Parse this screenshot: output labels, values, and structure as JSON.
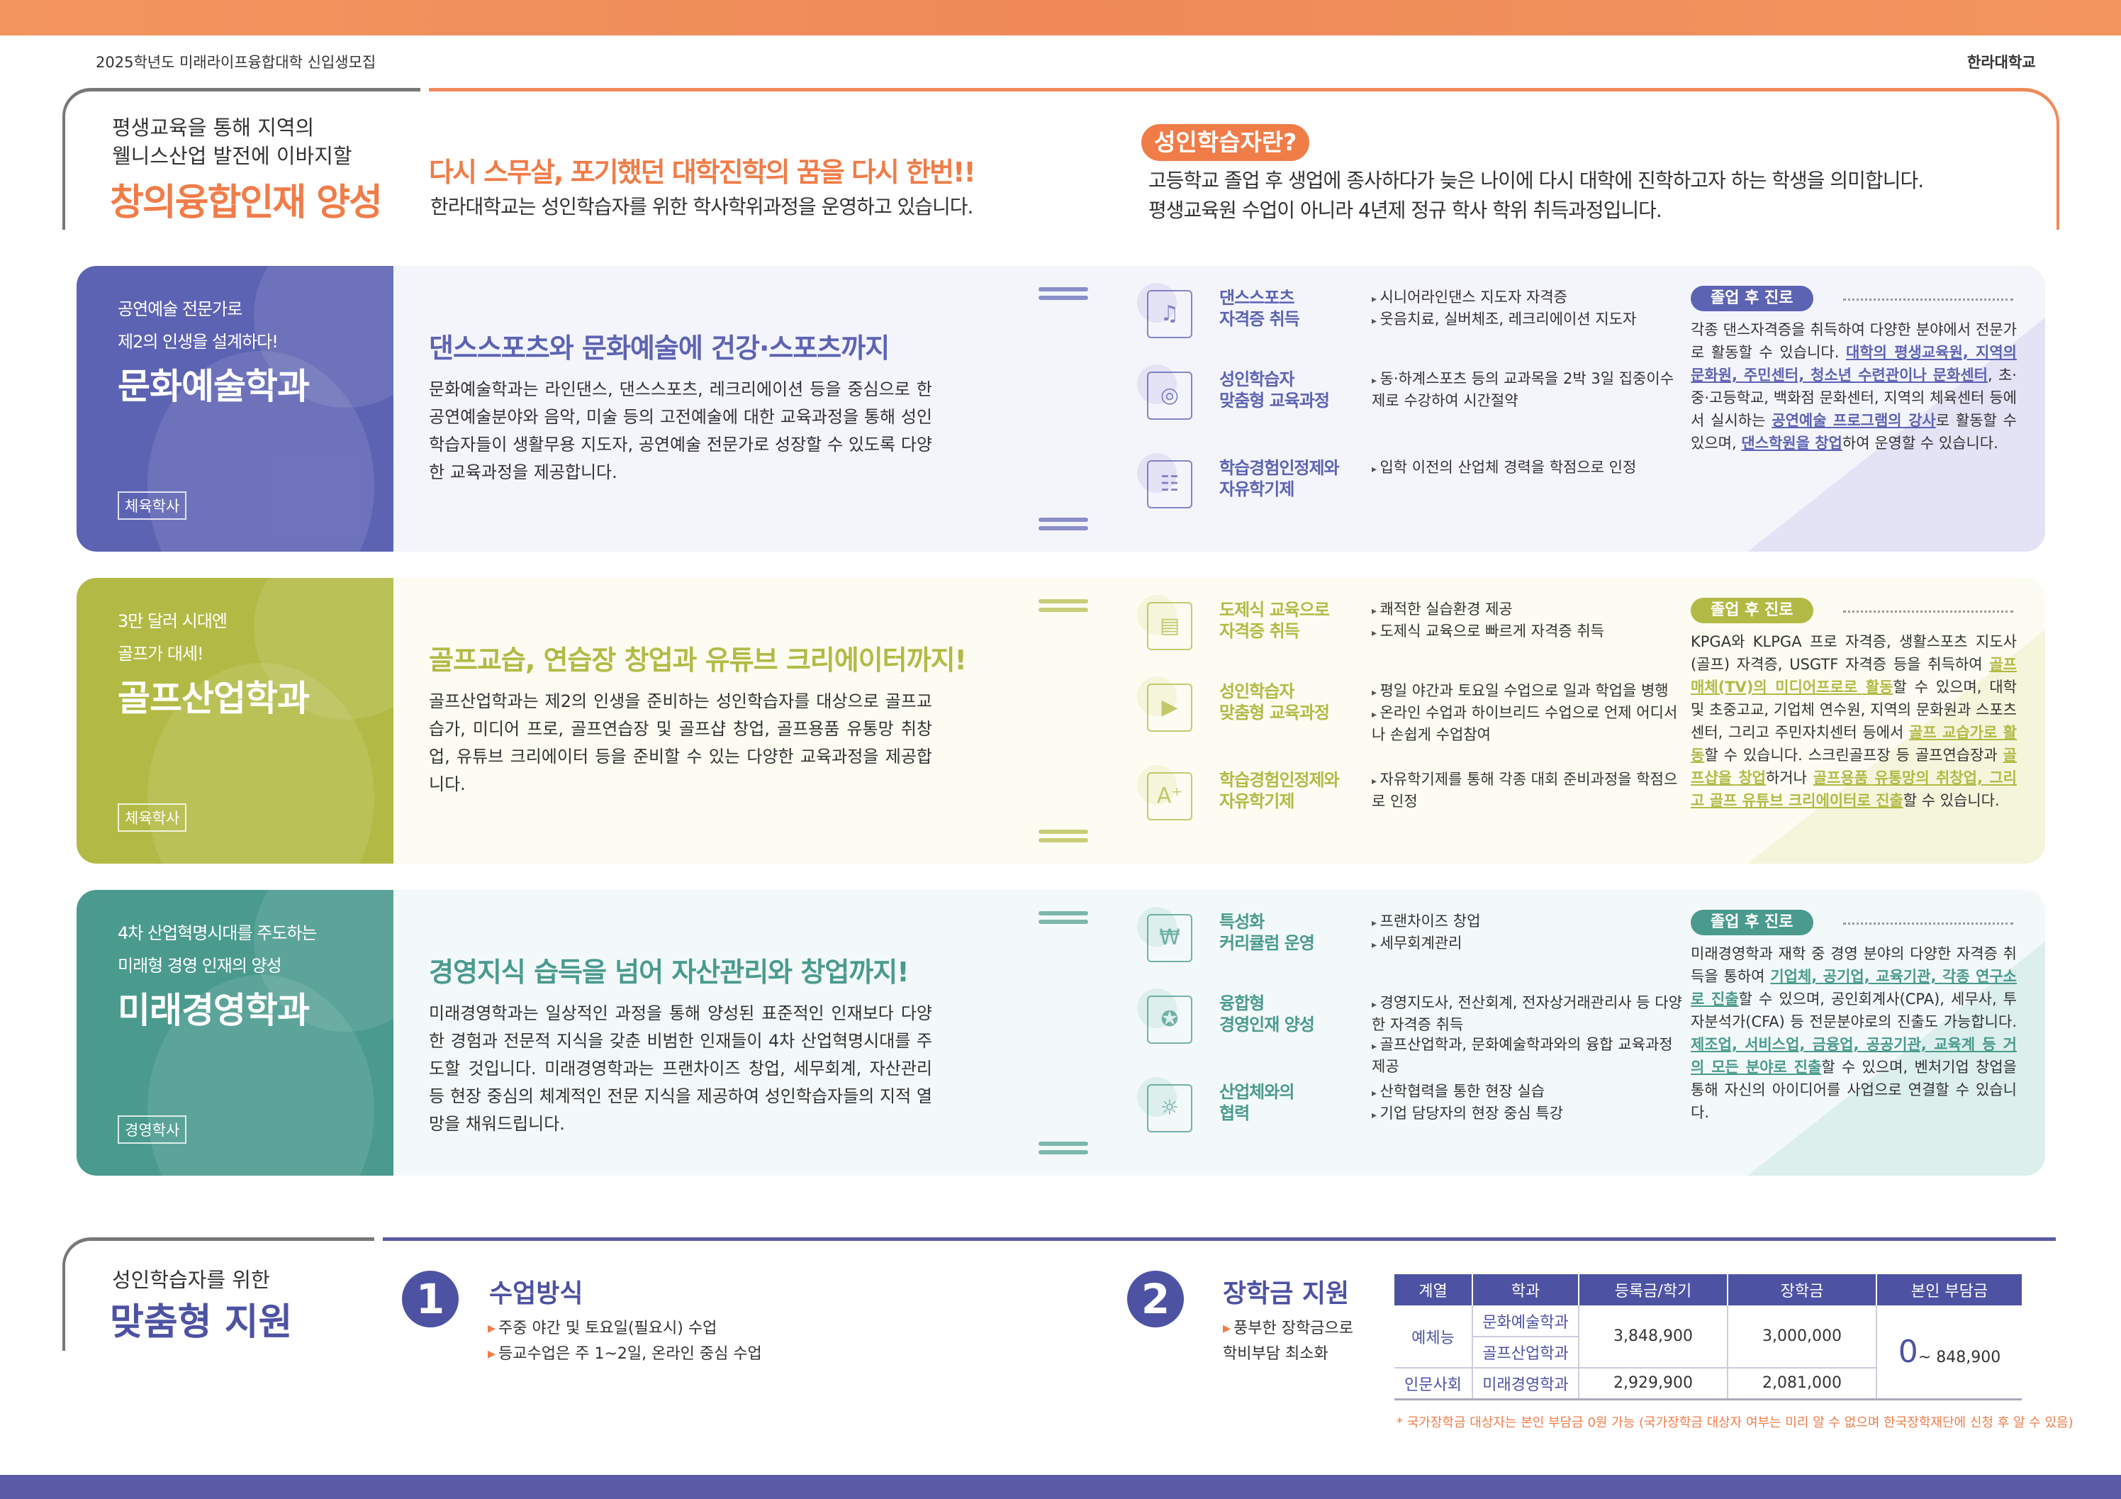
{
  "header": {
    "left": "2025학년도 미래라이프융합대학 신입생모집",
    "right": "한라대학교"
  },
  "intro": {
    "lines": [
      "평생교육을 통해 지역의",
      "웰니스산업 발전에 이바지할"
    ],
    "highlight": "창의융합인재 양성",
    "slogan": "다시 스무살, 포기했던 대학진학의 꿈을 다시 한번!!",
    "slogan_sub": "한라대학교는 성인학습자를 위한 학사학위과정을 운영하고 있습니다.",
    "def_badge": "성인학습자란?",
    "def_lines": [
      "고등학교 졸업 후 생업에 종사하다가 늦은 나이에 다시 대학에 진학하고자 하는 학생을 의미합니다.",
      "평생교육원 수업이 아니라 4년제 정규 학사 학위 취득과정입니다."
    ]
  },
  "colors": {
    "orange": "#f07c48",
    "purple": "#5b61b0",
    "green": "#b2ba45",
    "teal": "#4a9a8e"
  },
  "departments": [
    {
      "color": "#5d63b3",
      "light": "#f4f5fb",
      "tri": "#e4e2f5",
      "sub": [
        "공연예술 전문가로",
        "제2의 인생을 설계하다!"
      ],
      "name": "문화예술학과",
      "degree": "체육학사",
      "headline": "댄스스포츠와 문화예술에 건강·스포츠까지",
      "body": "문화예술학과는 라인댄스, 댄스스포츠, 레크리에이션 등을 중심으로 한 공연예술분야와 음악, 미술 등의 고전예술에 대한 교육과정을 통해 성인학습자들이 생활무용 지도자, 공연예술 전문가로 성장할 수 있도록 다양한 교육과정을 제공합니다.",
      "features": [
        {
          "icon": "music-scroll-icon",
          "title": [
            "댄스스포츠",
            "자격증 취득"
          ],
          "bullets": [
            "시니어라인댄스 지도자 자격증",
            "웃음치료, 실버체조, 레크리에이션 지도자"
          ]
        },
        {
          "icon": "target-icon",
          "title": [
            "성인학습자",
            "맞춤형 교육과정"
          ],
          "bullets": [
            "동·하계스포츠 등의 교과목을 2박 3일 집중이수제로 수강하여 시간절약"
          ]
        },
        {
          "icon": "teacher-board-icon",
          "title": [
            "학습경험인정제와",
            "자유학기제"
          ],
          "bullets": [
            "입학 이전의 산업체 경력을 학점으로 인정"
          ]
        }
      ],
      "career_label": "졸업 후 진로",
      "career": [
        {
          "t": "각종 댄스자격증을 취득하여 다양한 분야에서 전문가로 활동할 수 있습니다. "
        },
        {
          "t": "대학의 평생교육원, 지역의 문화원, 주민센터, 청소년 수련관이나 문화센터",
          "h": true
        },
        {
          "t": ", 초·중·고등학교, 백화점 문화센터, 지역의 체육센터 등에서 실시하는 "
        },
        {
          "t": "공연예술 프로그램의 강사",
          "h": true
        },
        {
          "t": "로 활동할 수 있으며, "
        },
        {
          "t": "댄스학원을 창업",
          "h": true
        },
        {
          "t": "하여 운영할 수 있습니다."
        }
      ]
    },
    {
      "color": "#b2ba45",
      "light": "#fcfcf2",
      "tri": "#f5f5dc",
      "sub": [
        "3만 달러 시대엔",
        "골프가 대세!"
      ],
      "name": "골프산업학과",
      "degree": "체육학사",
      "headline": "골프교습, 연습장 창업과 유튜브 크리에이터까지!",
      "body": "골프산업학과는 제2의 인생을 준비하는 성인학습자를 대상으로 골프교습가, 미디어 프로, 골프연습장 및 골프샵 창업, 골프용품 유통망 취창업, 유튜브 크리에이터 등을 준비할 수 있는 다양한 교육과정을 제공합니다.",
      "features": [
        {
          "icon": "document-cursor-icon",
          "title": [
            "도제식 교육으로",
            "자격증 취득"
          ],
          "bullets": [
            "쾌적한 실습환경 제공",
            "도제식 교육으로 빠르게 자격증 취득"
          ]
        },
        {
          "icon": "online-class-icon",
          "title": [
            "성인학습자",
            "맞춤형 교육과정"
          ],
          "bullets": [
            "평일 야간과 토요일 수업으로 일과 학업을 병행",
            "온라인 수업과 하이브리드 수업으로 언제 어디서나 손쉽게 수업참여"
          ]
        },
        {
          "icon": "trophy-icon",
          "title": [
            "학습경험인정제와",
            "자유학기제"
          ],
          "bullets": [
            "자유학기제를 통해 각종 대회 준비과정을 학점으로 인정"
          ]
        }
      ],
      "career_label": "졸업 후 진로",
      "career": [
        {
          "t": "KPGA와 KLPGA 프로 자격증, 생활스포츠 지도사(골프) 자격증, USGTF 자격증 등을 취득하여 "
        },
        {
          "t": "골프매체(TV)의 미디어프로로 활동",
          "h": true
        },
        {
          "t": "할 수 있으며, 대학 및 초중고교, 기업체 연수원, 지역의 문화원과 스포츠센터, 그리고 주민자치센터 등에서 "
        },
        {
          "t": "골프 교습가로 활동",
          "h": true
        },
        {
          "t": "할 수 있습니다. 스크린골프장 등 골프연습장과 "
        },
        {
          "t": "골프샵을 창업",
          "h": true
        },
        {
          "t": "하거나 "
        },
        {
          "t": "골프용품 유통망의 취창업, 그리고 골프 유튜브 크리에이터로 진출",
          "h": true
        },
        {
          "t": "할 수 있습니다."
        }
      ]
    },
    {
      "color": "#4a9a8e",
      "light": "#f3f9f9",
      "tri": "#dcefec",
      "sub": [
        "4차 산업혁명시대를 주도하는",
        "미래형 경영 인재의 양성"
      ],
      "name": "미래경영학과",
      "degree": "경영학사",
      "headline": "경영지식 습득을 넘어 자산관리와 창업까지!",
      "body": "미래경영학과는 일상적인 과정을 통해 양성된 표준적인 인재보다 다양한 경험과 전문적 지식을 갖춘 비범한 인재들이 4차 산업혁명시대를 주도할 것입니다. 미래경영학과는 프랜차이즈 창업, 세무회계, 자산관리 등 현장 중심의 체계적인 전문 지식을 제공하여 성인학습자들의 지적 열망을 채워드립니다.",
      "features": [
        {
          "icon": "won-book-icon",
          "title": [
            "특성화",
            "커리큘럼 운영"
          ],
          "bullets": [
            "프랜차이즈 창업",
            "세무회계관리"
          ]
        },
        {
          "icon": "pass-badge-icon",
          "title": [
            "융합형",
            "경영인재 양성"
          ],
          "bullets": [
            "경영지도사, 전산회계, 전자상거래관리사 등 다양한 자격증 취득",
            "골프산업학과, 문화예술학과와의 융합 교육과정 제공"
          ]
        },
        {
          "icon": "lightbulb-people-icon",
          "title": [
            "산업체와의",
            "협력"
          ],
          "bullets": [
            "산학협력을 통한 현장 실습",
            "기업 담당자의 현장 중심 특강"
          ]
        }
      ],
      "career_label": "졸업 후 진로",
      "career": [
        {
          "t": "미래경영학과 재학 중 경영 분야의 다양한 자격증 취득을 통하여 "
        },
        {
          "t": "기업체, 공기업, 교육기관, 각종 연구소로 진출",
          "h": true
        },
        {
          "t": "할 수 있으며, 공인회계사(CPA), 세무사, 투자분석가(CFA) 등 전문분야로의 진출도 가능합니다. "
        },
        {
          "t": "제조업, 서비스업, 금융업, 공공기관, 교육계 등 거의 모든 분야로 진출",
          "h": true
        },
        {
          "t": "할 수 있으며, 벤처기업 창업을 통해 자신의 아이디어를 사업으로 연결할 수 있습니다."
        }
      ]
    }
  ],
  "support": {
    "pre": "성인학습자를 위한",
    "title": "맞춤형 지원",
    "s1": {
      "num": "1",
      "title": "수업방식",
      "bullets": [
        "주중 야간 및 토요일(필요시) 수업",
        "등교수업은 주 1~2일, 온라인 중심 수업"
      ]
    },
    "s2": {
      "num": "2",
      "title": "장학금 지원",
      "bullets": [
        "풍부한 장학금으로 학비부담 최소화"
      ]
    },
    "table": {
      "headers": [
        "계열",
        "학과",
        "등록금/학기",
        "장학금",
        "본인 부담금"
      ],
      "cat1": "예체능",
      "dep1": "문화예술학과",
      "dep2": "골프산업학과",
      "fee1": "3,848,900",
      "sch1": "3,000,000",
      "cat2": "인문사회",
      "dep3": "미래경영학과",
      "fee2": "2,929,900",
      "sch2": "2,081,000",
      "self_zero": "0",
      "self_range": "~ 848,900"
    },
    "note": "* 국가장학금 대상자는 본인 부담금 0원 가능 (국가장학금 대상자 여부는 미리 알 수 없으며 한국장학재단에 신청 후 알 수 있음)"
  }
}
